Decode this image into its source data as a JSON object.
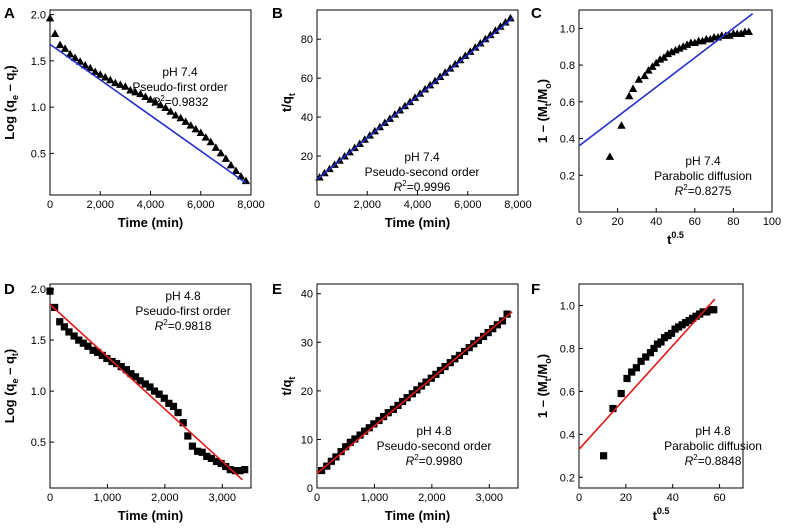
{
  "colors": {
    "axis": "#000000",
    "marker": "#000000",
    "fit_blue": "#1f2fc8",
    "fit_red": "#e01818",
    "marker_fill_blue_tint": "#1f2fc8"
  },
  "chart_data": [
    {
      "panel": "A",
      "type": "scatter",
      "marker": "triangle",
      "xlabel": "Time (min)",
      "ylabel_main": "Log (q",
      "ylabel_sub1": "e",
      "ylabel_mid": " – q",
      "ylabel_sub2": "t",
      "ylabel_end": ")",
      "xlim": [
        0,
        8000
      ],
      "ylim": [
        0.05,
        2.05
      ],
      "xticks": [
        0,
        2000,
        4000,
        6000,
        8000
      ],
      "xtick_labels": [
        "0",
        "2,000",
        "4,000",
        "6,000",
        "8,000"
      ],
      "yticks": [
        0.5,
        1.0,
        1.5,
        2.0
      ],
      "ytick_labels": [
        "0.5",
        "1.0",
        "1.5",
        "2.0"
      ],
      "annotation": [
        "pH 7.4",
        "Pseudo-first order",
        "R2=0.9832"
      ],
      "fit": {
        "color": "fit_blue",
        "x": [
          0,
          7800
        ],
        "y": [
          1.68,
          0.18
        ]
      },
      "x": [
        0,
        200,
        400,
        600,
        800,
        1000,
        1200,
        1400,
        1600,
        1800,
        2000,
        2200,
        2400,
        2600,
        2800,
        3000,
        3200,
        3400,
        3600,
        3800,
        4000,
        4200,
        4400,
        4600,
        4800,
        5000,
        5200,
        5400,
        5600,
        5800,
        6000,
        6200,
        6400,
        6600,
        6800,
        7000,
        7200,
        7400,
        7600,
        7800
      ],
      "y": [
        1.96,
        1.79,
        1.67,
        1.63,
        1.57,
        1.53,
        1.49,
        1.45,
        1.42,
        1.38,
        1.35,
        1.32,
        1.29,
        1.26,
        1.24,
        1.22,
        1.18,
        1.16,
        1.14,
        1.11,
        1.08,
        1.05,
        1.02,
        0.99,
        0.95,
        0.91,
        0.88,
        0.84,
        0.8,
        0.76,
        0.72,
        0.67,
        0.62,
        0.56,
        0.5,
        0.44,
        0.37,
        0.31,
        0.25,
        0.2
      ]
    },
    {
      "panel": "B",
      "type": "scatter",
      "marker": "triangle",
      "xlabel": "Time (min)",
      "ylabel_main": "t/q",
      "ylabel_sub1": "t",
      "ylabel_mid": "",
      "ylabel_sub2": "",
      "ylabel_end": "",
      "xlim": [
        0,
        8000
      ],
      "ylim": [
        0,
        95
      ],
      "xticks": [
        0,
        2000,
        4000,
        6000,
        8000
      ],
      "xtick_labels": [
        "0",
        "2,000",
        "4,000",
        "6,000",
        "8,000"
      ],
      "yticks": [
        20,
        40,
        60,
        80
      ],
      "ytick_labels": [
        "20",
        "40",
        "60",
        "80"
      ],
      "annotation": [
        "pH 7.4",
        "Pseudo-second order",
        "R2=0.9996"
      ],
      "fit": {
        "color": "fit_blue",
        "x": [
          0,
          7800
        ],
        "y": [
          8,
          91
        ]
      },
      "x": [
        100,
        300,
        500,
        700,
        900,
        1100,
        1300,
        1500,
        1700,
        1900,
        2100,
        2300,
        2500,
        2700,
        2900,
        3100,
        3300,
        3500,
        3700,
        3900,
        4100,
        4300,
        4500,
        4700,
        4900,
        5100,
        5300,
        5500,
        5700,
        5900,
        6100,
        6300,
        6500,
        6700,
        6900,
        7100,
        7300,
        7500,
        7700
      ],
      "y": [
        9.0,
        11.2,
        13.3,
        15.5,
        17.6,
        19.8,
        21.9,
        24.1,
        26.2,
        28.4,
        30.5,
        32.7,
        34.8,
        37.0,
        39.1,
        41.3,
        43.4,
        45.6,
        47.7,
        49.9,
        52.0,
        54.2,
        56.3,
        58.5,
        60.6,
        62.8,
        64.9,
        67.1,
        69.2,
        71.4,
        73.5,
        75.7,
        77.8,
        80.0,
        82.1,
        84.3,
        86.4,
        88.6,
        90.7
      ]
    },
    {
      "panel": "C",
      "type": "scatter",
      "marker": "triangle",
      "xlabel_main": "t",
      "xlabel_sup": "0.5",
      "ylabel_main": "1 – (M",
      "ylabel_sub1": "t",
      "ylabel_mid": "/M",
      "ylabel_sub2": "o",
      "ylabel_end": ")",
      "xlim": [
        0,
        100
      ],
      "ylim": [
        0,
        1.1
      ],
      "xticks": [
        0,
        20,
        40,
        60,
        80,
        100
      ],
      "xtick_labels": [
        "0",
        "20",
        "40",
        "60",
        "80",
        "100"
      ],
      "yticks": [
        0.2,
        0.4,
        0.6,
        0.8,
        1.0
      ],
      "ytick_labels": [
        "0.2",
        "0.4",
        "0.6",
        "0.8",
        "1.0"
      ],
      "annotation": [
        "pH 7.4",
        "Parabolic diffusion",
        "R2=0.8275"
      ],
      "fit": {
        "color": "fit_blue",
        "x": [
          0,
          90
        ],
        "y": [
          0.36,
          1.08
        ]
      },
      "x": [
        16,
        22,
        26,
        28,
        31,
        34,
        36,
        38,
        40,
        42,
        44,
        46,
        48,
        50,
        52,
        54,
        56,
        58,
        60,
        62,
        64,
        66,
        68,
        70,
        72,
        74,
        76,
        78,
        80,
        82,
        84,
        86,
        88
      ],
      "y": [
        0.3,
        0.47,
        0.63,
        0.67,
        0.72,
        0.74,
        0.77,
        0.79,
        0.81,
        0.83,
        0.84,
        0.86,
        0.87,
        0.88,
        0.89,
        0.9,
        0.91,
        0.92,
        0.92,
        0.93,
        0.93,
        0.94,
        0.94,
        0.95,
        0.95,
        0.96,
        0.96,
        0.96,
        0.97,
        0.97,
        0.97,
        0.98,
        0.98
      ]
    },
    {
      "panel": "D",
      "type": "scatter",
      "marker": "square",
      "xlabel": "Time (min)",
      "ylabel_main": "Log (q",
      "ylabel_sub1": "e",
      "ylabel_mid": " – q",
      "ylabel_sub2": "t",
      "ylabel_end": ")",
      "xlim": [
        0,
        3500
      ],
      "ylim": [
        0.05,
        2.05
      ],
      "xticks": [
        0,
        1000,
        2000,
        3000
      ],
      "xtick_labels": [
        "0",
        "1,000",
        "2,000",
        "3,000"
      ],
      "yticks": [
        0.5,
        1.0,
        1.5,
        2.0
      ],
      "ytick_labels": [
        "0.5",
        "1.0",
        "1.5",
        "2.0"
      ],
      "annotation": [
        "pH 4.8",
        "Pseudo-first order",
        "R2=0.9818"
      ],
      "fit": {
        "color": "fit_red",
        "x": [
          0,
          3350
        ],
        "y": [
          1.85,
          0.13
        ]
      },
      "x": [
        0,
        80,
        170,
        250,
        330,
        420,
        500,
        580,
        660,
        750,
        830,
        910,
        990,
        1080,
        1160,
        1240,
        1330,
        1410,
        1490,
        1570,
        1660,
        1740,
        1820,
        1900,
        1990,
        2070,
        2150,
        2230,
        2320,
        2400,
        2480,
        2570,
        2650,
        2730,
        2810,
        2900,
        2980,
        3060,
        3140,
        3230,
        3310,
        3390
      ],
      "y": [
        1.98,
        1.82,
        1.68,
        1.63,
        1.58,
        1.54,
        1.5,
        1.47,
        1.44,
        1.4,
        1.38,
        1.35,
        1.32,
        1.29,
        1.27,
        1.24,
        1.21,
        1.17,
        1.14,
        1.1,
        1.07,
        1.04,
        1.0,
        0.97,
        0.93,
        0.88,
        0.85,
        0.79,
        0.69,
        0.56,
        0.46,
        0.41,
        0.4,
        0.36,
        0.34,
        0.31,
        0.29,
        0.26,
        0.23,
        0.22,
        0.22,
        0.23
      ]
    },
    {
      "panel": "E",
      "type": "scatter",
      "marker": "square",
      "xlabel": "Time (min)",
      "ylabel_main": "t/q",
      "ylabel_sub1": "t",
      "ylabel_mid": "",
      "ylabel_sub2": "",
      "ylabel_end": "",
      "xlim": [
        0,
        3500
      ],
      "ylim": [
        0,
        42
      ],
      "xticks": [
        0,
        1000,
        2000,
        3000
      ],
      "xtick_labels": [
        "0",
        "1,000",
        "2,000",
        "3,000"
      ],
      "yticks": [
        0,
        10,
        20,
        30,
        40
      ],
      "ytick_labels": [
        "0",
        "10",
        "20",
        "30",
        "40"
      ],
      "annotation": [
        "pH 4.8",
        "Pseudo-second order",
        "R2=0.9980"
      ],
      "fit": {
        "color": "fit_red",
        "x": [
          0,
          3400
        ],
        "y": [
          3.0,
          36.3
        ]
      },
      "x": [
        80,
        170,
        250,
        330,
        420,
        500,
        580,
        660,
        750,
        830,
        910,
        990,
        1080,
        1160,
        1240,
        1330,
        1410,
        1490,
        1570,
        1660,
        1740,
        1820,
        1900,
        1990,
        2070,
        2150,
        2230,
        2320,
        2400,
        2480,
        2570,
        2650,
        2730,
        2810,
        2900,
        2980,
        3060,
        3140,
        3230,
        3310
      ],
      "y": [
        3.6,
        4.5,
        5.5,
        6.4,
        7.5,
        8.5,
        9.4,
        10.1,
        10.9,
        11.7,
        12.4,
        13.2,
        13.9,
        14.7,
        15.5,
        16.2,
        17.0,
        17.8,
        18.6,
        19.4,
        20.2,
        21.0,
        21.8,
        22.6,
        23.4,
        24.2,
        25.0,
        25.8,
        26.6,
        27.3,
        28.1,
        28.9,
        29.7,
        30.4,
        31.2,
        32.0,
        32.8,
        33.6,
        34.4,
        35.8
      ]
    },
    {
      "panel": "F",
      "type": "scatter",
      "marker": "square",
      "xlabel_main": "t",
      "xlabel_sup": "0.5",
      "ylabel_main": "1 – (M",
      "ylabel_sub1": "t",
      "ylabel_mid": "/M",
      "ylabel_sub2": "o",
      "ylabel_end": ")",
      "xlim": [
        0,
        70
      ],
      "ylim": [
        0.15,
        1.1
      ],
      "xticks": [
        0,
        20,
        40,
        60
      ],
      "xtick_labels": [
        "0",
        "20",
        "40",
        "60"
      ],
      "yticks": [
        0.2,
        0.4,
        0.6,
        0.8,
        1.0
      ],
      "ytick_labels": [
        "0.2",
        "0.4",
        "0.6",
        "0.8",
        "1.0"
      ],
      "annotation": [
        "pH 4.8",
        "Parabolic diffusion",
        "R2=0.8848"
      ],
      "fit": {
        "color": "fit_red",
        "x": [
          0,
          58
        ],
        "y": [
          0.33,
          1.03
        ]
      },
      "x": [
        10.5,
        14.5,
        18,
        20.5,
        22.5,
        24.5,
        26.5,
        28.5,
        30.5,
        32,
        33.5,
        35,
        36.5,
        38,
        39.5,
        41,
        42.5,
        44,
        45.5,
        47,
        48.5,
        50,
        51.5,
        53,
        54.5,
        56,
        57.5
      ],
      "y": [
        0.3,
        0.52,
        0.59,
        0.66,
        0.69,
        0.71,
        0.74,
        0.76,
        0.78,
        0.8,
        0.82,
        0.83,
        0.85,
        0.86,
        0.87,
        0.89,
        0.9,
        0.91,
        0.92,
        0.93,
        0.94,
        0.95,
        0.96,
        0.97,
        0.97,
        0.98,
        0.98
      ]
    }
  ]
}
